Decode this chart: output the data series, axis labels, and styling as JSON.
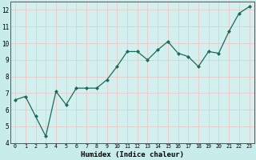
{
  "x": [
    0,
    1,
    2,
    3,
    4,
    5,
    6,
    7,
    8,
    9,
    10,
    11,
    12,
    13,
    14,
    15,
    16,
    17,
    18,
    19,
    20,
    21,
    22,
    23
  ],
  "y": [
    6.6,
    6.8,
    5.6,
    4.4,
    7.1,
    6.3,
    7.3,
    7.3,
    7.3,
    7.8,
    8.6,
    9.5,
    9.5,
    9.0,
    9.6,
    10.1,
    9.4,
    9.2,
    8.6,
    9.5,
    9.4,
    10.7,
    11.8,
    12.2
  ],
  "xlabel": "Humidex (Indice chaleur)",
  "xlim": [
    -0.5,
    23.5
  ],
  "ylim": [
    4,
    12.5
  ],
  "yticks": [
    4,
    5,
    6,
    7,
    8,
    9,
    10,
    11,
    12
  ],
  "xticks": [
    0,
    1,
    2,
    3,
    4,
    5,
    6,
    7,
    8,
    9,
    10,
    11,
    12,
    13,
    14,
    15,
    16,
    17,
    18,
    19,
    20,
    21,
    22,
    23
  ],
  "line_color": "#1a6b5a",
  "marker_color": "#1a6b5a",
  "bg_color": "#c8ecea",
  "grid_color": "#e8c8c8",
  "plot_bg": "#d4f0ee"
}
